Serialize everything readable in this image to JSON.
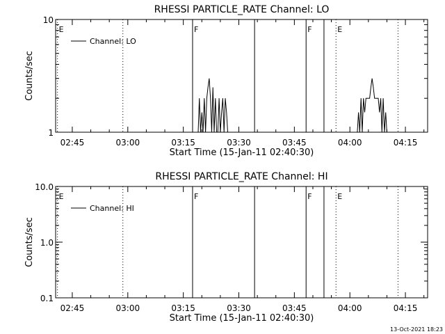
{
  "footer": {
    "timestamp": "13-Oct-2021 18:23"
  },
  "chart_data": [
    {
      "type": "line",
      "title": "RHESSI PARTICLE_RATE Channel: LO",
      "xlabel": "Start Time (15-Jan-11 02:40:30)",
      "ylabel": "Counts/sec",
      "yscale": "log",
      "xlim": [
        "02:40:30",
        "04:21:00"
      ],
      "ylim": [
        1,
        10
      ],
      "xticks": [
        "02:45",
        "03:00",
        "03:15",
        "03:30",
        "03:45",
        "04:00",
        "04:15"
      ],
      "yticks": [
        "1",
        "10"
      ],
      "legend": {
        "position": "top-left",
        "entries": [
          "Channel: LO"
        ]
      },
      "markers": [
        {
          "time": "02:41:00",
          "label": "E",
          "style": "dotted-left"
        },
        {
          "time": "02:58:40",
          "label": "",
          "style": "dotted"
        },
        {
          "time": "03:17:30",
          "label": "F",
          "style": "solid"
        },
        {
          "time": "03:34:15",
          "label": "",
          "style": "solid"
        },
        {
          "time": "03:48:10",
          "label": "F",
          "style": "solid"
        },
        {
          "time": "03:53:00",
          "label": "",
          "style": "solid"
        },
        {
          "time": "03:56:15",
          "label": "E",
          "style": "dotted"
        },
        {
          "time": "04:13:00",
          "label": "",
          "style": "dotted"
        }
      ],
      "series": [
        {
          "name": "Channel: LO",
          "segments": [
            {
              "x": [
                "03:19:00",
                "03:19:20",
                "03:19:40",
                "03:20:00",
                "03:20:20",
                "03:20:40",
                "03:21:00",
                "03:21:20",
                "03:21:40",
                "03:22:00",
                "03:22:20",
                "03:22:40",
                "03:23:00",
                "03:23:20",
                "03:23:40",
                "03:24:00",
                "03:24:20",
                "03:24:40",
                "03:25:00",
                "03:25:20",
                "03:25:40",
                "03:26:00",
                "03:26:20",
                "03:26:40",
                "03:27:00"
              ],
              "y": [
                1,
                2,
                1,
                1.5,
                1,
                2,
                1,
                2,
                2.5,
                3,
                2,
                1,
                2.5,
                1,
                2,
                1,
                1,
                2,
                1,
                1.5,
                2,
                1,
                2,
                1.5,
                1
              ]
            },
            {
              "x": [
                "04:02:00",
                "04:02:20",
                "04:02:40",
                "04:03:00",
                "04:03:20",
                "04:03:40",
                "04:04:00",
                "04:04:20",
                "04:04:40",
                "04:05:00",
                "04:05:20",
                "04:05:40",
                "04:06:00",
                "04:06:20",
                "04:06:40",
                "04:07:00",
                "04:07:20",
                "04:07:40",
                "04:08:00",
                "04:08:20",
                "04:08:40",
                "04:09:00",
                "04:09:20",
                "04:09:40",
                "04:10:00"
              ],
              "y": [
                1,
                1.5,
                1,
                2,
                1,
                2,
                1.5,
                2,
                2,
                2,
                2,
                2.5,
                3,
                2.5,
                2,
                2,
                2,
                2,
                1.5,
                2,
                1,
                2,
                1,
                1.5,
                1
              ]
            }
          ]
        }
      ]
    },
    {
      "type": "line",
      "title": "RHESSI PARTICLE_RATE Channel: HI",
      "xlabel": "Start Time (15-Jan-11 02:40:30)",
      "ylabel": "Counts/sec",
      "yscale": "log",
      "xlim": [
        "02:40:30",
        "04:21:00"
      ],
      "ylim": [
        0.1,
        10
      ],
      "xticks": [
        "02:45",
        "03:00",
        "03:15",
        "03:30",
        "03:45",
        "04:00",
        "04:15"
      ],
      "yticks": [
        "0.1",
        "1.0",
        "10.0"
      ],
      "legend": {
        "position": "top-left",
        "entries": [
          "Channel: HI"
        ]
      },
      "markers": [
        {
          "time": "02:41:00",
          "label": "E",
          "style": "dotted-left"
        },
        {
          "time": "02:58:40",
          "label": "",
          "style": "dotted"
        },
        {
          "time": "03:17:30",
          "label": "F",
          "style": "solid"
        },
        {
          "time": "03:34:15",
          "label": "",
          "style": "solid"
        },
        {
          "time": "03:48:10",
          "label": "F",
          "style": "solid"
        },
        {
          "time": "03:53:00",
          "label": "",
          "style": "solid"
        },
        {
          "time": "03:56:15",
          "label": "E",
          "style": "dotted"
        },
        {
          "time": "04:13:00",
          "label": "",
          "style": "dotted"
        }
      ],
      "series": [
        {
          "name": "Channel: HI",
          "segments": []
        }
      ]
    }
  ]
}
